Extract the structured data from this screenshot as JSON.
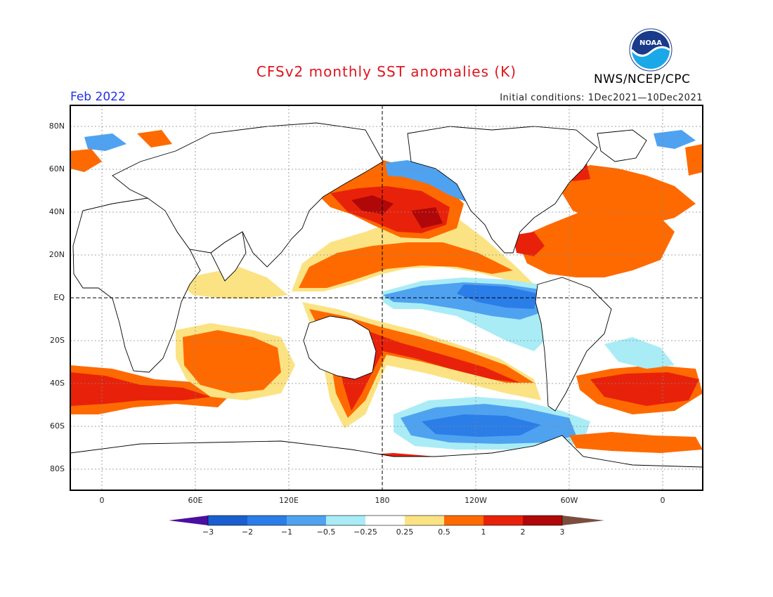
{
  "header": {
    "title": "CFSv2 monthly SST anomalies (K)",
    "month": "Feb 2022",
    "initial_conditions": "Initial conditions: 1Dec2021—10Dec2021",
    "organization": "NWS/NCEP/CPC",
    "logo_text": "NOAA"
  },
  "map": {
    "lat_labels": [
      "80N",
      "60N",
      "40N",
      "20N",
      "EQ",
      "20S",
      "40S",
      "60S",
      "80S"
    ],
    "lon_labels": [
      "0",
      "60E",
      "120E",
      "180",
      "120W",
      "60W",
      "0"
    ],
    "field": "SST anomaly",
    "units": "K"
  },
  "colorbar": {
    "labels": [
      "−3",
      "−2",
      "−1",
      "−0.5",
      "−0.25",
      "0.25",
      "0.5",
      "1",
      "2",
      "3"
    ],
    "colors": [
      "#4b0fa0",
      "#1a5fd0",
      "#2b7de8",
      "#4fa2f0",
      "#a9ecf6",
      "#ffffff",
      "#fbe384",
      "#ff6a00",
      "#e8220a",
      "#b00808",
      "#7a4e3e"
    ]
  }
}
